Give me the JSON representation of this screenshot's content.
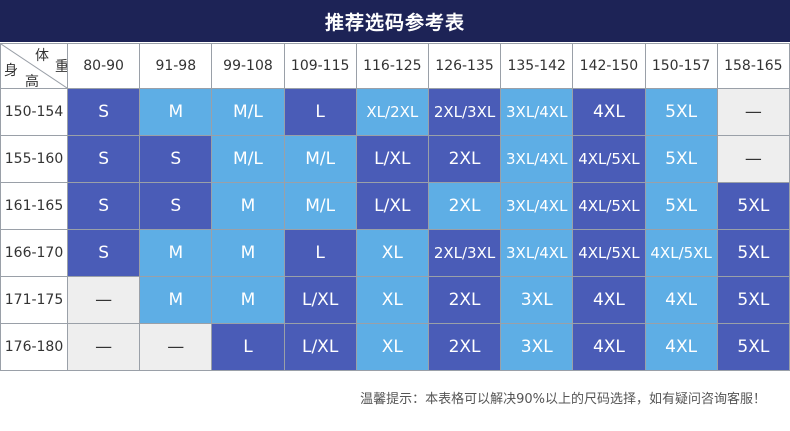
{
  "title": "推荐选码参考表",
  "corner": {
    "weight_chars": [
      "体",
      "重"
    ],
    "height_chars": [
      "身",
      "高"
    ]
  },
  "weight_ranges": [
    "80-90",
    "91-98",
    "99-108",
    "109-115",
    "116-125",
    "126-135",
    "135-142",
    "142-150",
    "150-157",
    "158-165"
  ],
  "rows": [
    {
      "height": "150-154",
      "sizes": [
        "S",
        "M",
        "M/L",
        "L",
        "XL/2XL",
        "2XL/3XL",
        "3XL/4XL",
        "4XL",
        "5XL",
        "—"
      ]
    },
    {
      "height": "155-160",
      "sizes": [
        "S",
        "S",
        "M/L",
        "M/L",
        "L/XL",
        "2XL",
        "3XL/4XL",
        "4XL/5XL",
        "5XL",
        "—"
      ]
    },
    {
      "height": "161-165",
      "sizes": [
        "S",
        "S",
        "M",
        "M/L",
        "L/XL",
        "2XL",
        "3XL/4XL",
        "4XL/5XL",
        "5XL",
        "5XL"
      ]
    },
    {
      "height": "166-170",
      "sizes": [
        "S",
        "M",
        "M",
        "L",
        "XL",
        "2XL/3XL",
        "3XL/4XL",
        "4XL/5XL",
        "4XL/5XL",
        "5XL"
      ]
    },
    {
      "height": "171-175",
      "sizes": [
        "—",
        "M",
        "M",
        "L/XL",
        "XL",
        "2XL",
        "3XL",
        "4XL",
        "4XL",
        "5XL"
      ]
    },
    {
      "height": "176-180",
      "sizes": [
        "—",
        "—",
        "L",
        "L/XL",
        "XL",
        "2XL",
        "3XL",
        "4XL",
        "4XL",
        "5XL"
      ]
    }
  ],
  "cell_tones": [
    [
      "d",
      "l",
      "l",
      "d",
      "l",
      "d",
      "l",
      "d",
      "l",
      "g"
    ],
    [
      "d",
      "d",
      "l",
      "l",
      "d",
      "d",
      "l",
      "d",
      "l",
      "g"
    ],
    [
      "d",
      "d",
      "l",
      "l",
      "d",
      "l",
      "l",
      "d",
      "l",
      "d"
    ],
    [
      "d",
      "l",
      "l",
      "d",
      "l",
      "d",
      "l",
      "d",
      "l",
      "d"
    ],
    [
      "g",
      "l",
      "l",
      "d",
      "l",
      "d",
      "l",
      "d",
      "l",
      "d"
    ],
    [
      "g",
      "g",
      "d",
      "d",
      "l",
      "d",
      "l",
      "d",
      "l",
      "d"
    ]
  ],
  "colors": {
    "title_bg": "#1d2356",
    "dark": "#4a5cb7",
    "light": "#5eaee5",
    "gray": "#eeeeee"
  },
  "footer": "温馨提示：本表格可以解决90%以上的尺码选择，如有疑问咨询客服！"
}
